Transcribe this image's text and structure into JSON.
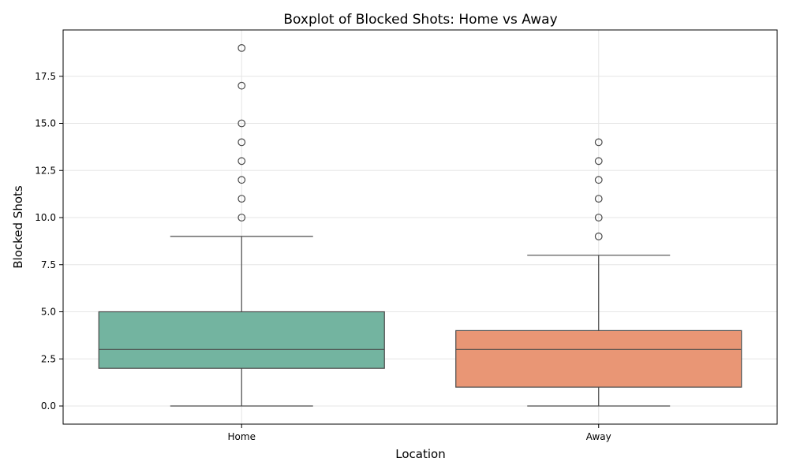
{
  "chart_data": {
    "type": "box",
    "title": "Boxplot of Blocked Shots: Home vs Away",
    "xlabel": "Location",
    "ylabel": "Blocked Shots",
    "ylim": [
      -1,
      19.9
    ],
    "yticks": [
      0.0,
      2.5,
      5.0,
      7.5,
      10.0,
      12.5,
      15.0,
      17.5
    ],
    "ytick_labels": [
      "0.0",
      "2.5",
      "5.0",
      "7.5",
      "10.0",
      "12.5",
      "15.0",
      "17.5"
    ],
    "grid": true,
    "categories": [
      "Home",
      "Away"
    ],
    "boxes": [
      {
        "category": "Home",
        "whisker_low": 0,
        "q1": 2,
        "median": 3,
        "q3": 5,
        "whisker_high": 9,
        "outliers": [
          10,
          11,
          12,
          13,
          14,
          15,
          17,
          19
        ],
        "color": "#73b4a0"
      },
      {
        "category": "Away",
        "whisker_low": 0,
        "q1": 1,
        "median": 3,
        "q3": 4,
        "whisker_high": 8,
        "outliers": [
          9,
          10,
          11,
          12,
          13,
          14
        ],
        "color": "#e99675"
      }
    ]
  }
}
